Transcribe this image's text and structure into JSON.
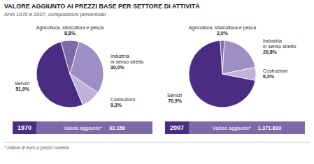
{
  "title": "VALORE AGGIUNTO AI PREZZI BASE PER SETTORE DI ATTIVITÀ",
  "subtitle": "Anni 1970 e 2007, composizioni percentuali",
  "footnote": "* milioni di euro a prezzi correnti",
  "chart_data": [
    {
      "type": "pie",
      "title": "1970",
      "categories": [
        "Servizi",
        "Agricoltura, silvicoltura e pesca",
        "Industria\nin senso stretto",
        "Costruzioni"
      ],
      "values": [
        51.9,
        8.8,
        30.0,
        9.3
      ],
      "value_labels": [
        "51,9%",
        "8,8%",
        "30,0%",
        "9,3%"
      ],
      "colors": [
        "#4a2d82",
        "#7b6baa",
        "#9d8ec4",
        "#bfb3d9"
      ],
      "data_labels": true,
      "annotations": [
        "Valore aggiunto*",
        "32.156"
      ]
    },
    {
      "type": "pie",
      "title": "2007",
      "categories": [
        "Servizi",
        "Agricoltura, silvicoltura e pesca",
        "Industria\nin senso stretto",
        "Costruzioni"
      ],
      "values": [
        70.9,
        2.0,
        20.8,
        6.3
      ],
      "value_labels": [
        "70,9%",
        "2,0%",
        "20,8%",
        "6,3%"
      ],
      "colors": [
        "#4a2d82",
        "#7b6baa",
        "#9d8ec4",
        "#bfb3d9"
      ],
      "data_labels": true,
      "annotations": [
        "Valore aggiunto*",
        "1.371.833"
      ]
    }
  ]
}
